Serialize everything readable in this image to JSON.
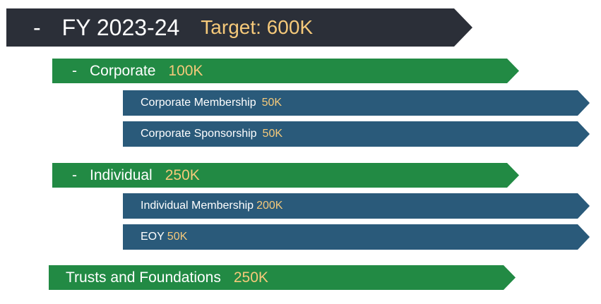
{
  "top": {
    "dash": "-",
    "label": "FY 2023-24",
    "value": "Target: 600K"
  },
  "corporate": {
    "dash": "-",
    "label": "Corporate",
    "value": "100K",
    "items": [
      {
        "label": "Corporate Membership",
        "value": "50K"
      },
      {
        "label": "Corporate Sponsorship",
        "value": "50K"
      }
    ]
  },
  "individual": {
    "dash": "-",
    "label": "Individual",
    "value": "250K",
    "items": [
      {
        "label": "Individual Membership",
        "value": "200K"
      },
      {
        "label": "EOY",
        "value": "50K"
      }
    ]
  },
  "trusts": {
    "label": "Trusts and Foundations",
    "value": "250K"
  },
  "colors": {
    "header": "#2b2f38",
    "group": "#228a44",
    "item": "#2a5a7a",
    "value_text": "#f5c97a"
  }
}
